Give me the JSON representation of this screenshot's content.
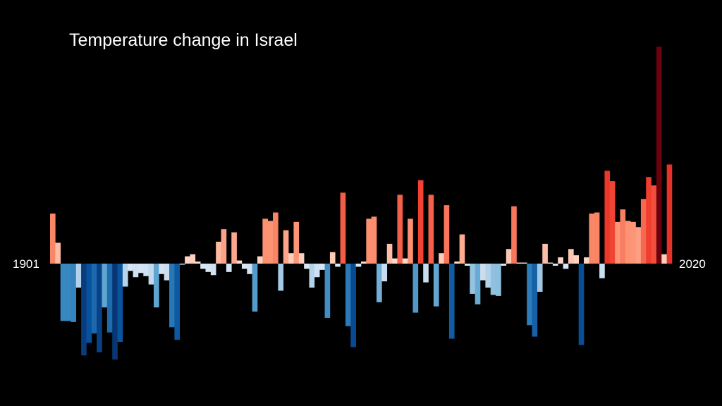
{
  "chart_data": {
    "type": "bar",
    "title": "Temperature change in Israel",
    "start_year_label": "1901",
    "end_year_label": "2020",
    "years": [
      1901,
      2020
    ],
    "ylim": [
      -0.95,
      2.1
    ],
    "values": [
      0.48,
      0.2,
      -0.55,
      -0.55,
      -0.56,
      -0.23,
      -0.88,
      -0.76,
      -0.67,
      -0.85,
      -0.42,
      -0.66,
      -0.92,
      -0.75,
      -0.22,
      -0.07,
      -0.13,
      -0.09,
      -0.12,
      -0.2,
      -0.42,
      -0.1,
      -0.16,
      -0.61,
      -0.73,
      -0.01,
      0.07,
      0.09,
      0.02,
      -0.05,
      -0.08,
      -0.11,
      0.21,
      0.33,
      -0.08,
      0.3,
      0.03,
      -0.05,
      -0.1,
      -0.46,
      0.07,
      0.43,
      0.41,
      0.49,
      -0.26,
      0.32,
      0.1,
      0.4,
      0.1,
      -0.05,
      -0.23,
      -0.13,
      -0.06,
      -0.52,
      0.11,
      -0.03,
      0.68,
      -0.6,
      -0.8,
      -0.03,
      0.02,
      0.43,
      0.45,
      -0.37,
      -0.17,
      0.19,
      0.05,
      0.66,
      0.05,
      0.43,
      -0.47,
      0.8,
      -0.18,
      0.66,
      -0.41,
      0.1,
      0.56,
      -0.72,
      0.02,
      0.28,
      -0.02,
      -0.29,
      -0.39,
      -0.16,
      -0.23,
      -0.3,
      -0.31,
      -0.02,
      0.14,
      0.55,
      0.01,
      0.01,
      -0.59,
      -0.7,
      -0.27,
      0.19,
      0.01,
      -0.02,
      0.06,
      -0.05,
      0.14,
      0.08,
      -0.78,
      0.06,
      0.48,
      0.49,
      -0.14,
      0.89,
      0.79,
      0.4,
      0.52,
      0.41,
      0.4,
      0.35,
      0.62,
      0.83,
      0.75,
      2.08,
      0.09,
      0.95
    ]
  }
}
